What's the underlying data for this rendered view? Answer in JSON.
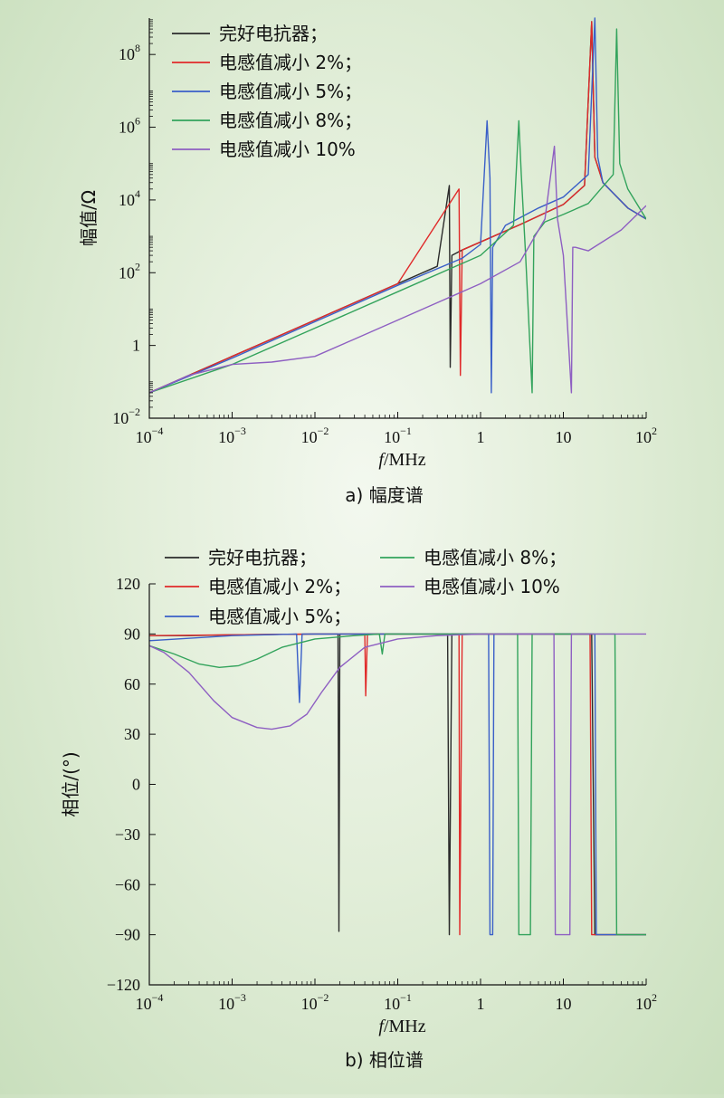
{
  "chart_data": [
    {
      "type": "line",
      "caption": "a) 幅度谱",
      "xlabel_italic": "f",
      "xlabel_unit": "/MHz",
      "ylabel": "幅值/Ω",
      "x_scale": "log",
      "y_scale": "log",
      "xlim": [
        0.0001,
        100
      ],
      "ylim": [
        0.01,
        1000000000
      ],
      "x_ticks": [
        {
          "mant": "10",
          "exp": "−4",
          "value": 0.0001
        },
        {
          "mant": "10",
          "exp": "−3",
          "value": 0.001
        },
        {
          "mant": "10",
          "exp": "−2",
          "value": 0.01
        },
        {
          "mant": "10",
          "exp": "−1",
          "value": 0.1
        },
        {
          "mant": "1",
          "exp": "",
          "value": 1
        },
        {
          "mant": "10",
          "exp": "",
          "value": 10
        },
        {
          "mant": "10",
          "exp": "2",
          "value": 100
        }
      ],
      "y_ticks": [
        {
          "mant": "10",
          "exp": "−2",
          "value": 0.01
        },
        {
          "mant": "1",
          "exp": "",
          "value": 1
        },
        {
          "mant": "10",
          "exp": "2",
          "value": 100
        },
        {
          "mant": "10",
          "exp": "4",
          "value": 10000
        },
        {
          "mant": "10",
          "exp": "6",
          "value": 1000000
        },
        {
          "mant": "10",
          "exp": "8",
          "value": 100000000
        }
      ],
      "legend_position": "top-left",
      "series": [
        {
          "name": "完好电抗器；",
          "color": "#2b2b2b",
          "x": [
            0.0001,
            0.0003,
            0.001,
            0.003,
            0.01,
            0.03,
            0.1,
            0.3,
            0.42,
            0.43,
            0.45,
            0.6,
            1,
            3,
            10,
            18,
            22,
            24,
            30,
            60,
            100
          ],
          "y": [
            0.05,
            0.15,
            0.5,
            1.5,
            5,
            15,
            50,
            150,
            25000,
            0.25,
            300,
            420,
            700,
            2100,
            7500,
            25000,
            800000000,
            150000,
            30000,
            6000,
            3000
          ]
        },
        {
          "name": "电感值减小 2%；",
          "color": "#e02a2a",
          "x": [
            0.0001,
            0.001,
            0.01,
            0.1,
            0.55,
            0.57,
            0.6,
            1,
            3,
            10,
            18,
            22,
            24,
            30,
            60,
            100
          ],
          "y": [
            0.05,
            0.5,
            5,
            50,
            20000,
            0.15,
            420,
            700,
            2100,
            7500,
            25000,
            800000000,
            150000,
            30000,
            6000,
            3000
          ]
        },
        {
          "name": "电感值减小 5%；",
          "color": "#3a5fc8",
          "x": [
            0.0001,
            0.001,
            0.01,
            0.1,
            0.6,
            1.0,
            1.2,
            1.3,
            1.35,
            1.4,
            2,
            5,
            10,
            20,
            24,
            26,
            30,
            60,
            100
          ],
          "y": [
            0.05,
            0.45,
            4.5,
            45,
            250,
            600,
            1500000,
            40000,
            0.05,
            500,
            2000,
            6000,
            12000,
            50000,
            1000000000,
            150000,
            30000,
            6000,
            3000
          ]
        },
        {
          "name": "电感值减小 8%；",
          "color": "#33a35c",
          "x": [
            0.0001,
            0.001,
            0.01,
            0.1,
            1,
            2.5,
            2.9,
            3.1,
            3.5,
            4.2,
            4.4,
            6,
            10,
            20,
            40,
            44,
            48,
            60,
            100
          ],
          "y": [
            0.05,
            0.3,
            3,
            30,
            300,
            2000,
            1500000,
            50000,
            300,
            0.05,
            1000,
            2500,
            4000,
            8000,
            50000,
            500000000,
            100000,
            20000,
            3000
          ]
        },
        {
          "name": "电感值减小 10%",
          "color": "#8e5fc2",
          "x": [
            0.0001,
            0.0003,
            0.001,
            0.003,
            0.01,
            0.03,
            0.1,
            0.3,
            1,
            3,
            6,
            7.8,
            8.5,
            10,
            12.5,
            13,
            14,
            20,
            50,
            100
          ],
          "y": [
            0.05,
            0.15,
            0.3,
            0.35,
            0.5,
            1.5,
            5,
            15,
            50,
            200,
            3000,
            300000,
            3000,
            300,
            0.05,
            500,
            500,
            400,
            1500,
            7000
          ]
        }
      ]
    },
    {
      "type": "line",
      "caption": "b) 相位谱",
      "xlabel_italic": "f",
      "xlabel_unit": "/MHz",
      "ylabel": "相位/(°)",
      "x_scale": "log",
      "y_scale": "linear",
      "xlim": [
        0.0001,
        100
      ],
      "ylim": [
        -120,
        120
      ],
      "x_ticks": [
        {
          "mant": "10",
          "exp": "−4",
          "value": 0.0001
        },
        {
          "mant": "10",
          "exp": "−3",
          "value": 0.001
        },
        {
          "mant": "10",
          "exp": "−2",
          "value": 0.01
        },
        {
          "mant": "10",
          "exp": "−1",
          "value": 0.1
        },
        {
          "mant": "1",
          "exp": "",
          "value": 1
        },
        {
          "mant": "10",
          "exp": "",
          "value": 10
        },
        {
          "mant": "10",
          "exp": "2",
          "value": 100
        }
      ],
      "y_ticks": [
        {
          "label": "120",
          "value": 120
        },
        {
          "label": "90",
          "value": 90
        },
        {
          "label": "60",
          "value": 60
        },
        {
          "label": "30",
          "value": 30
        },
        {
          "label": "0",
          "value": 0
        },
        {
          "label": "−30",
          "value": -30
        },
        {
          "label": "−60",
          "value": -60
        },
        {
          "label": "−90",
          "value": -90
        },
        {
          "label": "−120",
          "value": -120
        }
      ],
      "legend_position": "top",
      "series": [
        {
          "name": "完好电抗器；",
          "color": "#2b2b2b",
          "x": [
            0.0001,
            0.0003,
            0.001,
            0.01,
            0.019,
            0.0195,
            0.02,
            0.1,
            0.4,
            0.42,
            0.45,
            1,
            10,
            22,
            24,
            100
          ],
          "y": [
            89,
            89,
            89.5,
            90,
            90,
            -88,
            90,
            90,
            90,
            -90,
            90,
            90,
            90,
            90,
            -90,
            -90
          ]
        },
        {
          "name": "电感值减小 2%；",
          "color": "#e02a2a",
          "x": [
            0.0001,
            0.001,
            0.01,
            0.04,
            0.041,
            0.043,
            0.1,
            0.55,
            0.56,
            0.6,
            1,
            10,
            21,
            22,
            23,
            100
          ],
          "y": [
            89,
            89.5,
            90,
            90,
            53,
            90,
            90,
            90,
            -90,
            90,
            90,
            90,
            90,
            -90,
            -90,
            -90
          ]
        },
        {
          "name": "电感值减小 5%；",
          "color": "#3a5fc8",
          "x": [
            0.0001,
            0.001,
            0.006,
            0.0065,
            0.007,
            0.01,
            0.1,
            1,
            1.25,
            1.3,
            1.4,
            1.45,
            10,
            24,
            25,
            100
          ],
          "y": [
            86,
            89,
            90,
            49,
            90,
            90,
            90,
            90,
            90,
            -90,
            -90,
            90,
            90,
            90,
            -90,
            -90
          ]
        },
        {
          "name": "电感值减小 8%；",
          "color": "#33a35c",
          "x": [
            0.0001,
            0.0002,
            0.0004,
            0.0007,
            0.0012,
            0.002,
            0.004,
            0.01,
            0.03,
            0.06,
            0.065,
            0.07,
            0.1,
            2.8,
            2.9,
            4,
            4.2,
            10,
            42,
            44,
            100
          ],
          "y": [
            83,
            78,
            72,
            70,
            71,
            75,
            82,
            87,
            89,
            90,
            78,
            90,
            90,
            90,
            -90,
            -90,
            90,
            90,
            90,
            -90,
            -90
          ]
        },
        {
          "name": "电感值减小 10%",
          "color": "#8e5fc2",
          "x": [
            0.0001,
            0.00015,
            0.0003,
            0.0006,
            0.001,
            0.002,
            0.003,
            0.005,
            0.008,
            0.012,
            0.02,
            0.04,
            0.1,
            0.3,
            1,
            7.7,
            8,
            12,
            12.5,
            20,
            100
          ],
          "y": [
            83,
            79,
            67,
            50,
            40,
            34,
            33,
            35,
            42,
            55,
            70,
            82,
            87,
            89,
            90,
            90,
            -90,
            -90,
            90,
            90,
            90
          ]
        }
      ]
    }
  ]
}
